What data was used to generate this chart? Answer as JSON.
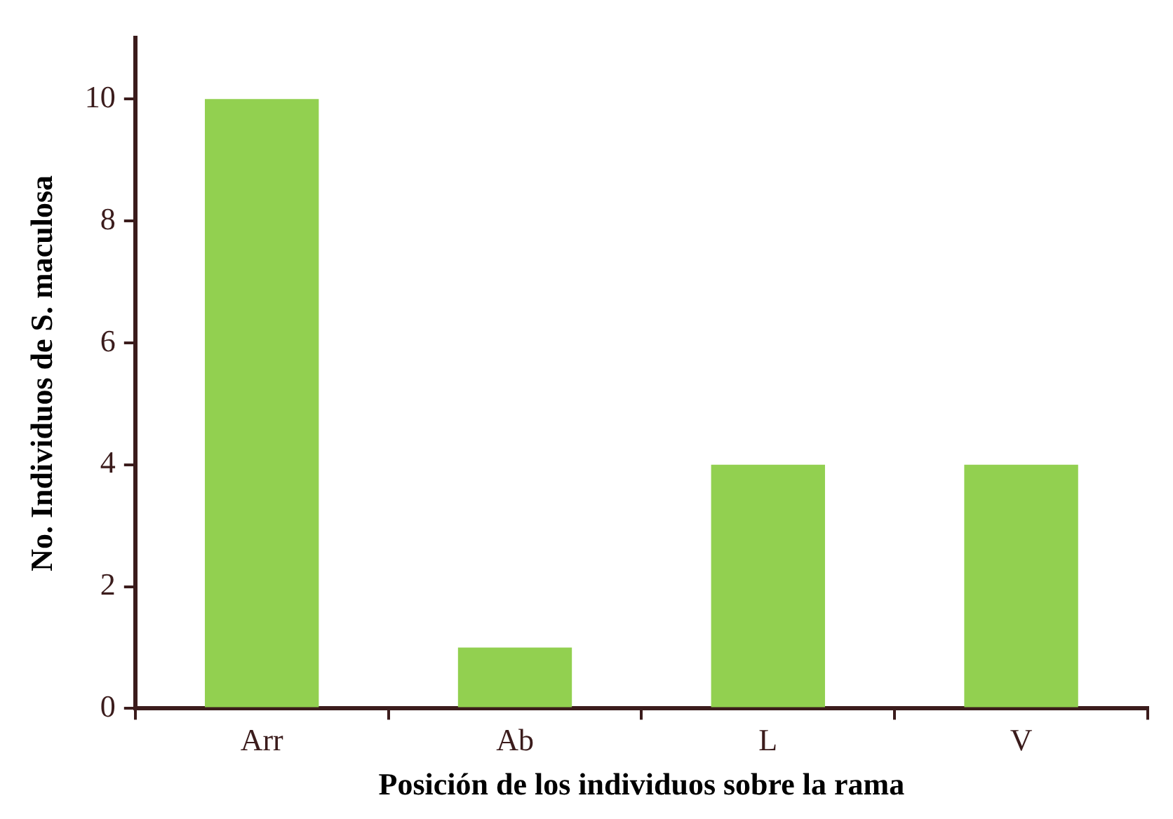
{
  "chart_data": {
    "type": "bar",
    "xlabel": "Posición de los individuos sobre la rama",
    "ylabel": "No. Individuos de S. maculosa",
    "categories": [
      "Arr",
      "Ab",
      "L",
      "V"
    ],
    "values": [
      10,
      1,
      4,
      4
    ],
    "color": "#92d050",
    "ylim": [
      0,
      11
    ],
    "yticks": [
      0,
      2,
      4,
      6,
      8,
      10
    ],
    "grid": false,
    "legend": false
  }
}
